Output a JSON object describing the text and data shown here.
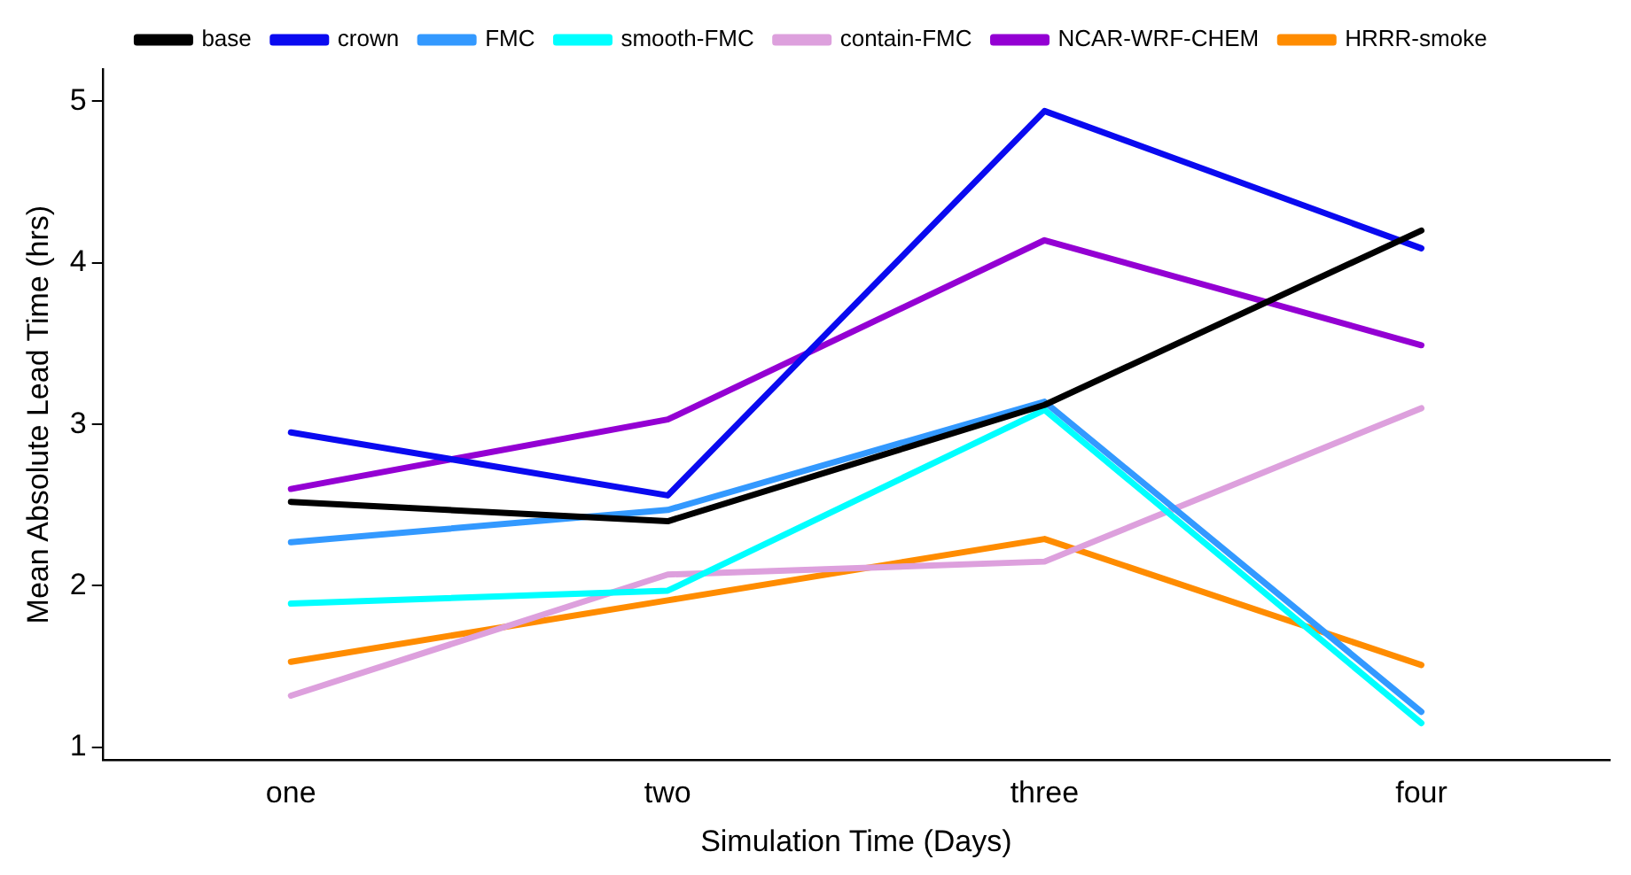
{
  "chart_data": {
    "type": "line",
    "xlabel": "Simulation Time (Days)",
    "ylabel": "Mean Absolute Lead Time (hrs)",
    "categories": [
      "one",
      "two",
      "three",
      "four"
    ],
    "series": [
      {
        "name": "base",
        "color": "#000000",
        "values": [
          2.52,
          2.4,
          3.12,
          4.2
        ]
      },
      {
        "name": "crown",
        "color": "#0a0af0",
        "values": [
          2.95,
          2.56,
          4.94,
          4.09
        ]
      },
      {
        "name": "FMC",
        "color": "#3399ff",
        "values": [
          2.27,
          2.47,
          3.14,
          1.22
        ]
      },
      {
        "name": "smooth-FMC",
        "color": "#00ffff",
        "values": [
          1.89,
          1.97,
          3.09,
          1.15
        ]
      },
      {
        "name": "contain-FMC",
        "color": "#dda0dd",
        "values": [
          1.32,
          2.07,
          2.15,
          3.1
        ]
      },
      {
        "name": "NCAR-WRF-CHEM",
        "color": "#9400d3",
        "values": [
          2.6,
          3.03,
          4.14,
          3.49
        ]
      },
      {
        "name": "HRRR-smoke",
        "color": "#ff8c00",
        "values": [
          1.53,
          1.91,
          2.29,
          1.51
        ]
      }
    ],
    "ylim": [
      0.92,
      5.2
    ],
    "yticks": [
      1,
      2,
      3,
      4,
      5
    ],
    "grid": false,
    "legend": "top",
    "marker": "none",
    "line_style": "solid"
  }
}
